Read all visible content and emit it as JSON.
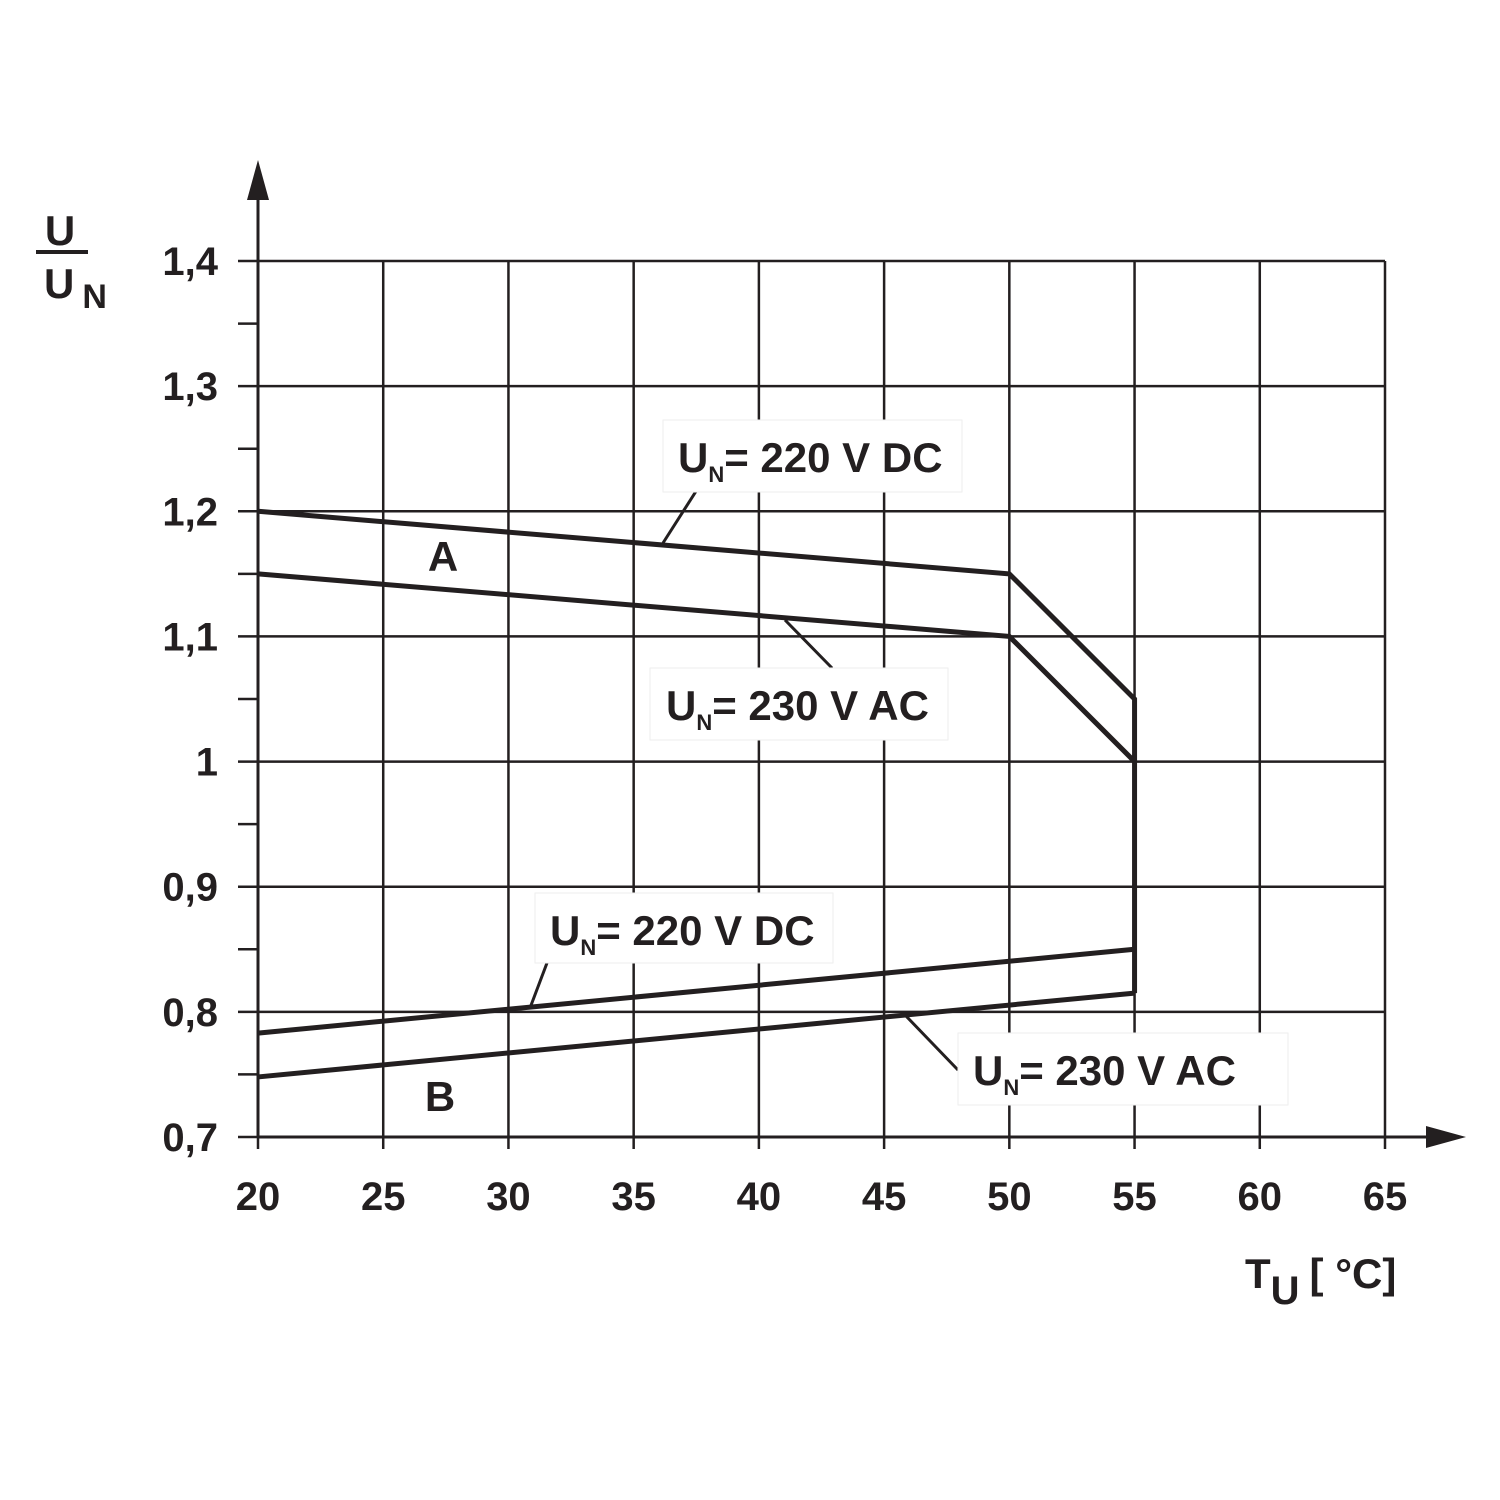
{
  "chart_data": {
    "type": "line",
    "color": "#231f20",
    "grid": true,
    "xlim": [
      20,
      65
    ],
    "xticks": [
      20,
      25,
      30,
      35,
      40,
      45,
      50,
      55,
      60,
      65
    ],
    "ylim": [
      0.7,
      1.4
    ],
    "yticks": [
      {
        "value": 0.7,
        "label": "0,7"
      },
      {
        "value": 0.8,
        "label": "0,8"
      },
      {
        "value": 0.9,
        "label": "0,9"
      },
      1,
      {
        "value": 1.1,
        "label": "1,1"
      },
      {
        "value": 1.2,
        "label": "1,2"
      },
      {
        "value": 1.3,
        "label": "1,3"
      },
      {
        "value": 1.4,
        "label": "1,4"
      }
    ],
    "yminorticks": [
      0.75,
      0.85,
      0.95,
      1.05,
      1.15,
      1.25,
      1.35
    ],
    "series": [
      {
        "x": [
          20,
          50,
          55,
          55
        ],
        "values": [
          1.2,
          1.15,
          1.05,
          0.815
        ]
      },
      {
        "x": [
          20,
          50,
          55
        ],
        "values": [
          1.15,
          1.1,
          1.0
        ]
      },
      {
        "x": [
          20,
          55
        ],
        "values": [
          0.783,
          0.85
        ]
      },
      {
        "x": [
          20,
          55
        ],
        "values": [
          0.748,
          0.815
        ]
      }
    ],
    "region_labels": [
      "A",
      "B"
    ],
    "annotations": [
      {
        "symbol": "U",
        "subscript": "N",
        "text": "= 220 V DC"
      },
      {
        "symbol": "U",
        "subscript": "N",
        "text": "= 230 V AC"
      },
      {
        "symbol": "U",
        "subscript": "N",
        "text": "= 220 V DC"
      },
      {
        "symbol": "U",
        "subscript": "N",
        "text": "= 230 V AC"
      }
    ],
    "y_label": {
      "numerator": "U",
      "denominator": "U",
      "subscript": "N"
    },
    "x_label": {
      "symbol": "T",
      "subscript": "U",
      "unit": "[ °C]"
    }
  }
}
